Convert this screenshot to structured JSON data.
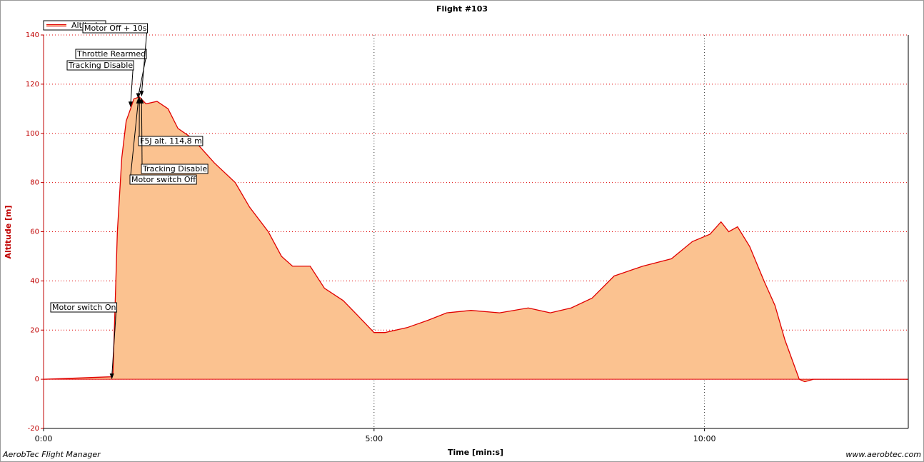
{
  "chart_data": {
    "type": "area",
    "title": "Flight #103",
    "x_label": "Time [min:s]",
    "y_label": "Altitude [m]",
    "footer_left": "AerobTec Flight Manager",
    "footer_right": "www.aerobtec.com",
    "xlim": [
      0,
      785
    ],
    "ylim": [
      -20,
      140
    ],
    "xticks": [
      {
        "value": 0,
        "label": "0:00"
      },
      {
        "value": 300,
        "label": "5:00"
      },
      {
        "value": 600,
        "label": "10:00"
      }
    ],
    "yticks": [
      -20,
      0,
      20,
      40,
      60,
      80,
      100,
      120,
      140
    ],
    "grid": true,
    "legend": "top-left",
    "x": [
      0,
      61,
      63,
      67,
      71,
      75,
      79,
      82,
      87,
      93,
      103,
      113,
      122,
      135,
      155,
      174,
      187,
      204,
      216,
      226,
      242,
      255,
      272,
      285,
      300,
      310,
      330,
      349,
      366,
      388,
      414,
      440,
      460,
      479,
      498,
      518,
      544,
      570,
      589,
      605,
      615,
      622,
      630,
      641,
      654,
      664,
      673,
      686,
      691,
      699,
      785
    ],
    "series": [
      {
        "name": "Altitude",
        "color": "#e00000",
        "fill": "#fbc290",
        "values": [
          0,
          1,
          2,
          60,
          90,
          105,
          110,
          114,
          114.8,
          112,
          113,
          110,
          102,
          98,
          88,
          80,
          70,
          60,
          50,
          46,
          46,
          37,
          32,
          26,
          19,
          19,
          21,
          24,
          27,
          28,
          27,
          29,
          27,
          29,
          33,
          42,
          46,
          49,
          56,
          59,
          64,
          60,
          62,
          54,
          40,
          30,
          16,
          0,
          -1,
          0,
          0
        ]
      }
    ],
    "annotations": [
      {
        "text": "Motor switch On",
        "x": 62,
        "y": 0
      },
      {
        "text": "Tracking Disable",
        "x": 79,
        "y": 110.6
      },
      {
        "text": "Throttle Rearmed",
        "x": 86,
        "y": 114
      },
      {
        "text": "Motor Off + 10s",
        "x": 89,
        "y": 115
      },
      {
        "text": "F5J alt. 114,8 m",
        "x": 87,
        "y": 114.8
      },
      {
        "text": "Tracking Disable",
        "x": 89,
        "y": 114.5
      },
      {
        "text": "Motor switch Off",
        "x": 86,
        "y": 114.5
      }
    ]
  }
}
